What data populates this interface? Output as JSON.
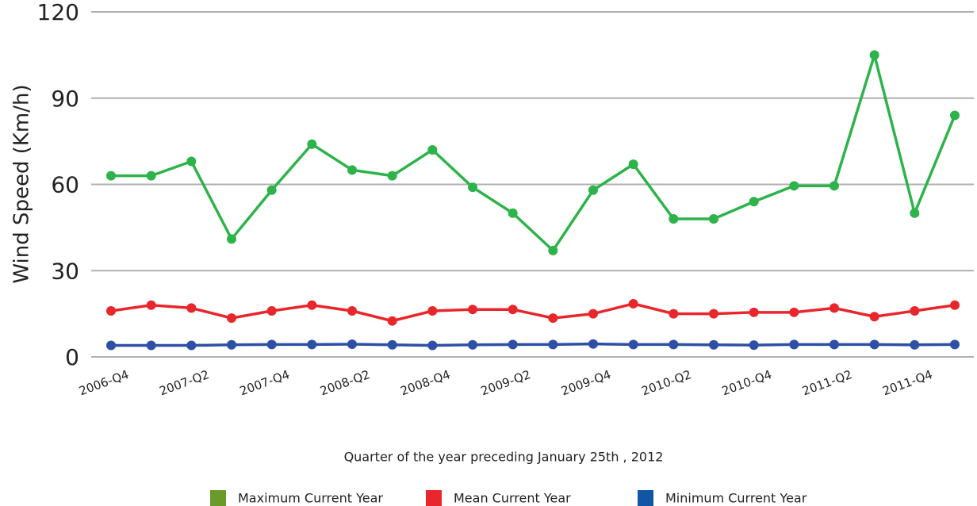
{
  "chart_data": {
    "type": "line",
    "y_label": "Wind Speed (Km/h)",
    "x_label": "Quarter of the year preceding January 25th , 2012",
    "categories": [
      "2006-Q4",
      null,
      "2007-Q2",
      null,
      "2007-Q4",
      null,
      "2008-Q2",
      null,
      "2008-Q4",
      null,
      "2009-Q2",
      null,
      "2009-Q4",
      null,
      "2010-Q2",
      null,
      "2010-Q4",
      null,
      "2011-Q2",
      null,
      "2011-Q4",
      null
    ],
    "series": [
      {
        "name": "Maximum Current Year",
        "color": "#2db34a",
        "legend_color": "#6a9a2a",
        "values": [
          63,
          63,
          68,
          41,
          58,
          74,
          65,
          63,
          72,
          59,
          50,
          37,
          58,
          67,
          48,
          48,
          54,
          59.5,
          59.5,
          105,
          50,
          84
        ]
      },
      {
        "name": "Mean Current Year",
        "color": "#e8262b",
        "legend_color": "#e8262b",
        "values": [
          16,
          18,
          17,
          13.5,
          16,
          18,
          16,
          12.5,
          16,
          16.5,
          16.5,
          13.5,
          15,
          18.5,
          15,
          15,
          15.5,
          15.5,
          17,
          14,
          16,
          18
        ]
      },
      {
        "name": "Minimum Current Year",
        "color": "#2d4fa6",
        "legend_color": "#1155a5",
        "values": [
          4,
          4,
          4,
          4.2,
          4.3,
          4.3,
          4.4,
          4.2,
          4,
          4.2,
          4.3,
          4.3,
          4.5,
          4.3,
          4.3,
          4.2,
          4.1,
          4.3,
          4.3,
          4.3,
          4.2,
          4.3
        ]
      }
    ],
    "ylim": [
      0,
      120
    ],
    "yticks": [
      0,
      30,
      60,
      90,
      120
    ],
    "grid": true
  }
}
